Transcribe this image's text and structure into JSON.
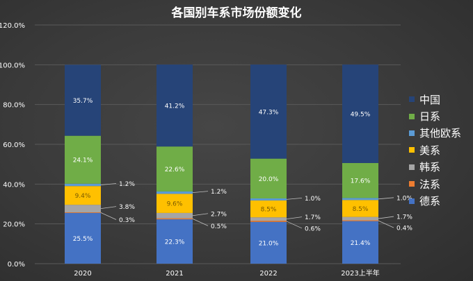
{
  "chart_data": {
    "type": "bar",
    "stacked": true,
    "title": "各国别车系市场份额变化",
    "categories": [
      "2020",
      "2021",
      "2022",
      "2023上半年"
    ],
    "ylim": [
      0,
      120
    ],
    "yticks": [
      0,
      20,
      40,
      60,
      80,
      100,
      120
    ],
    "ytick_labels": [
      "0.0%",
      "20.0%",
      "40.0%",
      "60.0%",
      "80.0%",
      "100.0%",
      "120.0%"
    ],
    "grid": true,
    "legend_position": "right",
    "series": [
      {
        "name": "德系",
        "color": "#4472c4",
        "values": [
          25.5,
          22.3,
          21.0,
          21.4
        ],
        "labels": [
          "25.5%",
          "22.3%",
          "21.0%",
          "21.4%"
        ],
        "label_side": "inside"
      },
      {
        "name": "法系",
        "color": "#ed7d31",
        "values": [
          0.3,
          0.5,
          0.6,
          0.4
        ],
        "labels": [
          "0.3%",
          "0.5%",
          "0.6%",
          "0.4%"
        ],
        "label_side": "outside"
      },
      {
        "name": "韩系",
        "color": "#a5a5a5",
        "values": [
          3.8,
          2.7,
          1.7,
          1.7
        ],
        "labels": [
          "3.8%",
          "2.7%",
          "1.7%",
          "1.7%"
        ],
        "label_side": "outside"
      },
      {
        "name": "美系",
        "color": "#ffc000",
        "values": [
          9.4,
          9.6,
          8.5,
          8.5
        ],
        "labels": [
          "9.4%",
          "9.6%",
          "8.5%",
          "8.5%"
        ],
        "label_side": "inside"
      },
      {
        "name": "其他欧系",
        "color": "#5b9bd5",
        "values": [
          1.2,
          1.2,
          1.0,
          1.0
        ],
        "labels": [
          "1.2%",
          "1.2%",
          "1.0%",
          "1.0%"
        ],
        "label_side": "outside"
      },
      {
        "name": "日系",
        "color": "#70ad47",
        "values": [
          24.1,
          22.6,
          20.0,
          17.6
        ],
        "labels": [
          "24.1%",
          "22.6%",
          "20.0%",
          "17.6%"
        ],
        "label_side": "inside"
      },
      {
        "name": "中国",
        "color": "#264478",
        "values": [
          35.7,
          41.2,
          47.3,
          49.5
        ],
        "labels": [
          "35.7%",
          "41.2%",
          "47.3%",
          "49.5%"
        ],
        "label_side": "inside"
      }
    ],
    "legend_order": [
      "中国",
      "日系",
      "其他欧系",
      "美系",
      "韩系",
      "法系",
      "德系"
    ]
  }
}
